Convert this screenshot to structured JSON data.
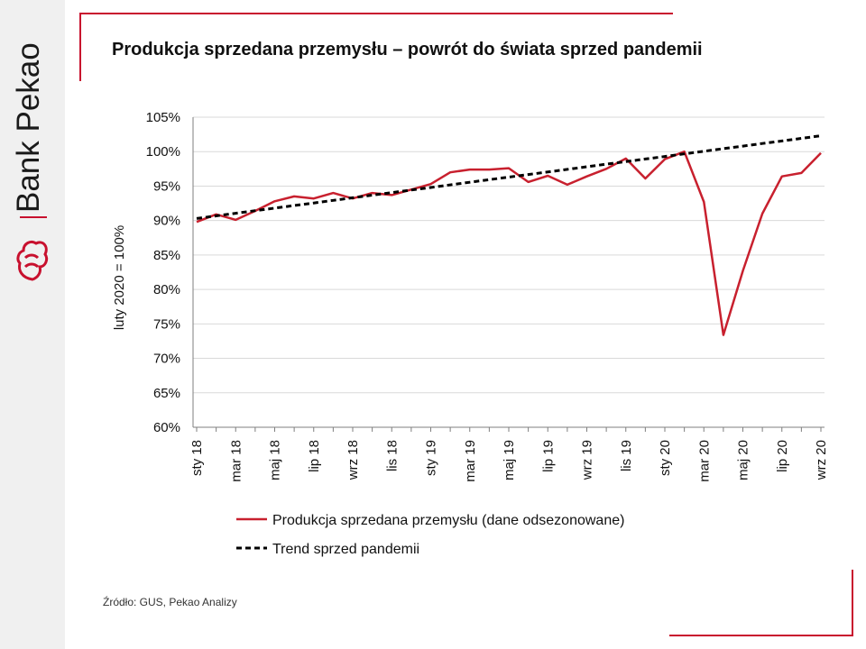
{
  "brand": {
    "name": "Bank Pekao"
  },
  "title": "Produkcja sprzedana przemysłu – powrót do świata sprzed pandemii",
  "source": "Źródło: GUS, Pekao Analizy",
  "colors": {
    "accent": "#c8102e",
    "series": "#c8202e",
    "trend": "#000000",
    "grid": "#d9d9d9"
  },
  "chart_data": {
    "type": "line",
    "title": "Produkcja sprzedana przemysłu – powrót do świata sprzed pandemii",
    "ylabel": "luty 2020 = 100%",
    "xlabel": "",
    "ylim": [
      60,
      105
    ],
    "yticks": [
      "60%",
      "65%",
      "70%",
      "75%",
      "80%",
      "85%",
      "90%",
      "95%",
      "100%",
      "105%"
    ],
    "grid": true,
    "legend": "bottom",
    "x": [
      "sty 18",
      "lut 18",
      "mar 18",
      "kwi 18",
      "maj 18",
      "cze 18",
      "lip 18",
      "sie 18",
      "wrz 18",
      "paź 18",
      "lis 18",
      "gru 18",
      "sty 19",
      "lut 19",
      "mar 19",
      "kwi 19",
      "maj 19",
      "cze 19",
      "lip 19",
      "sie 19",
      "wrz 19",
      "paź 19",
      "lis 19",
      "gru 19",
      "sty 20",
      "lut 20",
      "mar 20",
      "kwi 20",
      "maj 20",
      "cze 20",
      "lip 20",
      "sie 20",
      "wrz 20"
    ],
    "xtick_labels": [
      "sty 18",
      "",
      "mar 18",
      "",
      "maj 18",
      "",
      "lip 18",
      "",
      "wrz 18",
      "",
      "lis 18",
      "",
      "sty 19",
      "",
      "mar 19",
      "",
      "maj 19",
      "",
      "lip 19",
      "",
      "wrz 19",
      "",
      "lis 19",
      "",
      "sty 20",
      "",
      "mar 20",
      "",
      "maj 20",
      "",
      "lip 20",
      "",
      "wrz 20"
    ],
    "series": [
      {
        "name": "Produkcja sprzedana przemysłu (dane odsezonowane)",
        "style": "solid",
        "values": [
          89.8,
          90.9,
          90.1,
          91.4,
          92.8,
          93.5,
          93.2,
          94.0,
          93.2,
          94.0,
          93.7,
          94.5,
          95.3,
          97.0,
          97.4,
          97.4,
          97.6,
          95.6,
          96.5,
          95.2,
          96.4,
          97.5,
          99.0,
          96.1,
          98.9,
          100.0,
          92.7,
          73.4,
          82.7,
          91.0,
          96.4,
          96.9,
          99.8
        ]
      },
      {
        "name": "Trend sprzed pandemii",
        "style": "dashed",
        "values": [
          90.3,
          90.68,
          91.05,
          91.43,
          91.8,
          92.18,
          92.55,
          92.93,
          93.3,
          93.68,
          94.05,
          94.43,
          94.8,
          95.18,
          95.55,
          95.93,
          96.3,
          96.68,
          97.05,
          97.43,
          97.8,
          98.18,
          98.55,
          98.93,
          99.3,
          99.68,
          100.05,
          100.43,
          100.8,
          101.18,
          101.55,
          101.93,
          102.3
        ]
      }
    ]
  }
}
